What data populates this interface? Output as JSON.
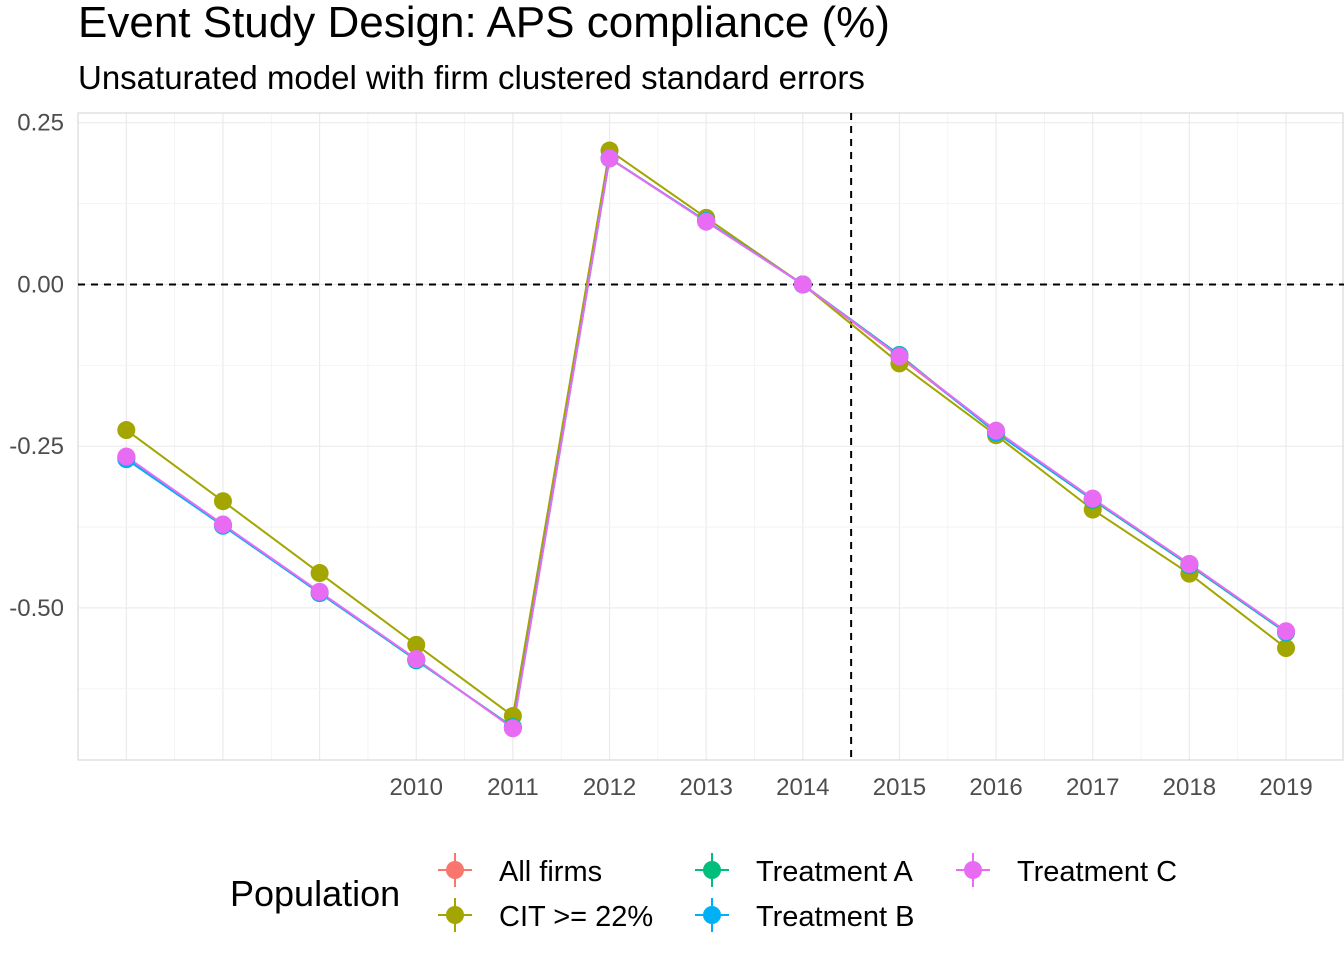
{
  "chart_data": {
    "type": "line",
    "title": "Event Study Design: APS compliance (%)",
    "subtitle": "Unsaturated model with firm clustered standard errors",
    "xlabel": "",
    "ylabel": "",
    "x": [
      2007,
      2008,
      2009,
      2010,
      2011,
      2012,
      2013,
      2014,
      2015,
      2016,
      2017,
      2018,
      2019
    ],
    "x_tick_labels": [
      2010,
      2011,
      2012,
      2013,
      2014,
      2015,
      2016,
      2017,
      2018,
      2019
    ],
    "y_ticks": [
      0.25,
      0.0,
      -0.25,
      -0.5
    ],
    "y_tick_labels": [
      "0.25",
      "0.00",
      "-0.25",
      "-0.50"
    ],
    "xlim": [
      2006.5,
      2019.6
    ],
    "ylim": [
      -0.735,
      0.265
    ],
    "grid": true,
    "reference_lines": {
      "horizontal_y": 0.0,
      "vertical_x": 2014.5,
      "style": "dashed"
    },
    "legend": {
      "title": "Population",
      "position": "bottom"
    },
    "series": [
      {
        "name": "All firms",
        "color": "#F8766D",
        "values": [
          -0.268,
          -0.372,
          -0.477,
          -0.58,
          -0.685,
          0.195,
          0.098,
          0.0,
          -0.112,
          -0.228,
          -0.332,
          -0.432,
          -0.537
        ]
      },
      {
        "name": "CIT >= 22%",
        "color": "#A3A500",
        "values": [
          -0.225,
          -0.335,
          -0.446,
          -0.557,
          -0.667,
          0.207,
          0.103,
          0.0,
          -0.122,
          -0.233,
          -0.348,
          -0.447,
          -0.562
        ]
      },
      {
        "name": "Treatment A",
        "color": "#00BF7D",
        "values": [
          -0.267,
          -0.372,
          -0.476,
          -0.581,
          -0.684,
          0.195,
          0.098,
          0.0,
          -0.109,
          -0.229,
          -0.333,
          -0.434,
          -0.538
        ]
      },
      {
        "name": "Treatment B",
        "color": "#00B0F6",
        "values": [
          -0.27,
          -0.373,
          -0.477,
          -0.58,
          -0.685,
          0.195,
          0.098,
          0.0,
          -0.11,
          -0.229,
          -0.332,
          -0.433,
          -0.537
        ]
      },
      {
        "name": "Treatment C",
        "color": "#E76BF3",
        "values": [
          -0.266,
          -0.371,
          -0.475,
          -0.579,
          -0.686,
          0.195,
          0.097,
          0.0,
          -0.111,
          -0.226,
          -0.331,
          -0.432,
          -0.536
        ]
      }
    ]
  }
}
